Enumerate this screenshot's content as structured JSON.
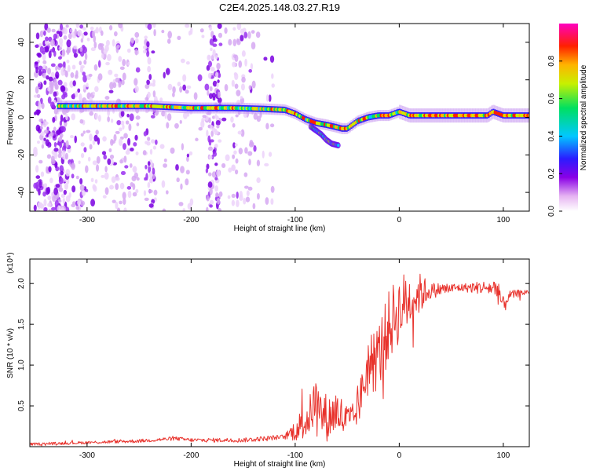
{
  "title": "C2E4.2025.148.03.27.R19",
  "colors": {
    "snr_line": "#e8322c",
    "axis": "#000000",
    "background": "#ffffff"
  },
  "chart_data": [
    {
      "type": "heatmap",
      "title": "C2E4.2025.148.03.27.R19",
      "xlabel": "Height of straight line (km)",
      "ylabel": "Frequency (Hz)",
      "xlim": [
        -355,
        125
      ],
      "ylim": [
        -50,
        50
      ],
      "xticks": [
        -300,
        -200,
        -100,
        0,
        100
      ],
      "yticks": [
        -40,
        -20,
        0,
        20,
        40
      ],
      "grid": false,
      "colorbar": {
        "label": "Normalized spectral amplitude",
        "range": [
          0,
          1
        ],
        "ticks": [
          "0.0",
          "0.2",
          "0.4",
          "0.6",
          "0.8"
        ]
      },
      "ridge_center": {
        "x": [
          -325,
          -280,
          -240,
          -200,
          -160,
          -130,
          -110,
          -100,
          -90,
          -80,
          -70,
          -62,
          -55,
          -50,
          -40,
          -30,
          -20,
          -10,
          0,
          10,
          30,
          60,
          85,
          90,
          95,
          100,
          110,
          125
        ],
        "y": [
          6,
          6,
          6,
          5,
          5,
          4.5,
          4,
          2,
          -1,
          -3,
          -4,
          -5,
          -6,
          -6,
          -2,
          0,
          1,
          1,
          3,
          1,
          1,
          1,
          1,
          3,
          2,
          1,
          1,
          1
        ]
      },
      "secondary_branch": {
        "x": [
          -85,
          -75,
          -70,
          -65,
          -58
        ],
        "y": [
          -5,
          -9,
          -12,
          -14,
          -15
        ]
      }
    },
    {
      "type": "line",
      "xlabel": "Height of straight line (km)",
      "ylabel": "SNR (10 * v/v)",
      "yscale_label": "(x10⁴)",
      "xlim": [
        -355,
        125
      ],
      "ylim": [
        0,
        23000
      ],
      "xticks": [
        -300,
        -200,
        -100,
        0,
        100
      ],
      "yticks": [
        5000,
        10000,
        15000,
        20000
      ],
      "ytick_labels": [
        "0.5",
        "1.0",
        "1.5",
        "2.0"
      ],
      "grid": false,
      "series": [
        {
          "x": [
            -355,
            -300,
            -250,
            -215,
            -200,
            -150,
            -110,
            -95,
            -85,
            -80,
            -75,
            -68,
            -60,
            -52,
            -45,
            -38,
            -30,
            -20,
            -12,
            -5,
            5,
            15,
            25,
            40,
            60,
            80,
            95,
            100,
            105,
            115,
            125
          ],
          "y": [
            300,
            500,
            700,
            1000,
            800,
            800,
            1200,
            2500,
            4000,
            6000,
            4000,
            3500,
            4500,
            3000,
            3000,
            5500,
            10000,
            11000,
            14000,
            16000,
            17500,
            18500,
            19000,
            19300,
            19500,
            19500,
            19400,
            17000,
            18500,
            18800,
            19000
          ],
          "noise_band": {
            "x": [
              -355,
              -110,
              -90,
              -70,
              -50,
              -40,
              -30,
              -10,
              5,
              20,
              30,
              60,
              90,
              95,
              105,
              125
            ],
            "amplitude": [
              150,
              300,
              2500,
              3000,
              2500,
              2000,
              4000,
              4500,
              4000,
              2500,
              1000,
              500,
              1000,
              2000,
              600,
              300
            ]
          }
        }
      ]
    }
  ]
}
